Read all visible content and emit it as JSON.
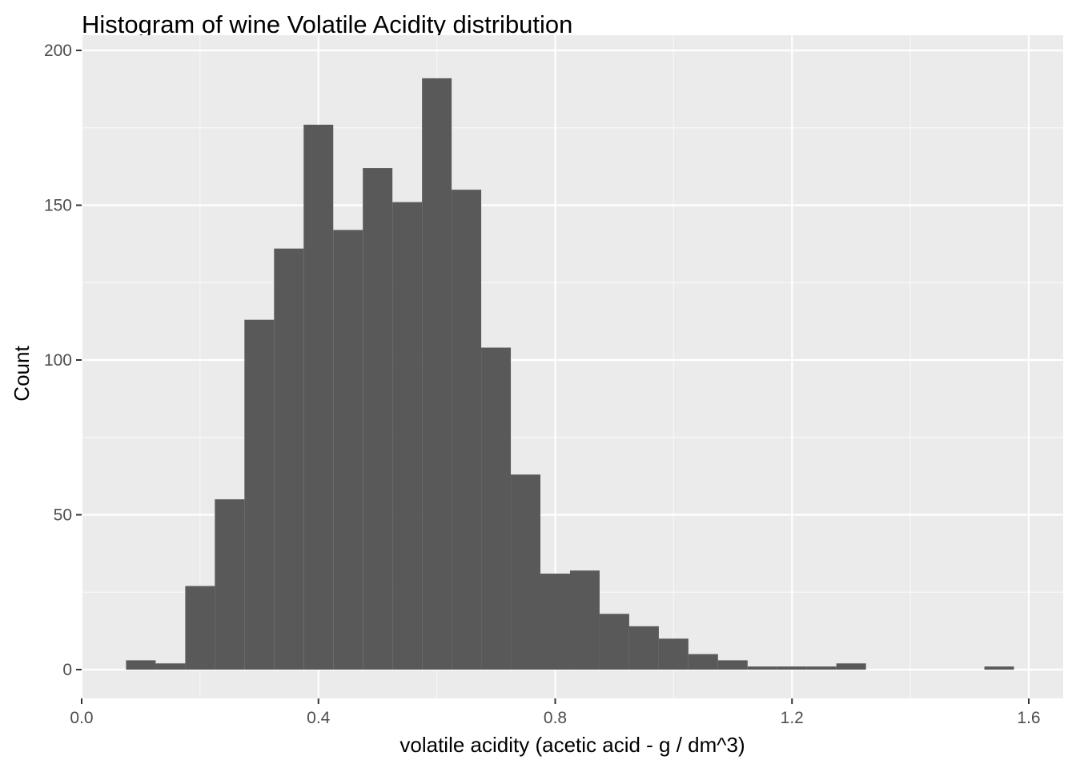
{
  "chart_data": {
    "type": "bar",
    "title": "Histogram of wine Volatile Acidity distribution",
    "xlabel": "volatile acidity (acetic acid - g / dm^3)",
    "ylabel": "Count",
    "xlim": [
      0.0,
      1.6
    ],
    "ylim": [
      0,
      200
    ],
    "bin_width": 0.05,
    "x_ticks": [
      0.0,
      0.4,
      0.8,
      1.2,
      1.6
    ],
    "x_tick_labels": [
      "0.0",
      "0.4",
      "0.8",
      "1.2",
      "1.6"
    ],
    "y_ticks": [
      0,
      50,
      100,
      150,
      200
    ],
    "y_tick_labels": [
      "0",
      "50",
      "100",
      "150",
      "200"
    ],
    "grid": true,
    "legend": "none",
    "bins": [
      {
        "x_start": 0.075,
        "x_end": 0.125,
        "count": 3
      },
      {
        "x_start": 0.125,
        "x_end": 0.175,
        "count": 2
      },
      {
        "x_start": 0.175,
        "x_end": 0.225,
        "count": 27
      },
      {
        "x_start": 0.225,
        "x_end": 0.275,
        "count": 55
      },
      {
        "x_start": 0.275,
        "x_end": 0.325,
        "count": 113
      },
      {
        "x_start": 0.325,
        "x_end": 0.375,
        "count": 136
      },
      {
        "x_start": 0.375,
        "x_end": 0.425,
        "count": 176
      },
      {
        "x_start": 0.425,
        "x_end": 0.475,
        "count": 142
      },
      {
        "x_start": 0.475,
        "x_end": 0.525,
        "count": 162
      },
      {
        "x_start": 0.525,
        "x_end": 0.575,
        "count": 151
      },
      {
        "x_start": 0.575,
        "x_end": 0.625,
        "count": 191
      },
      {
        "x_start": 0.625,
        "x_end": 0.675,
        "count": 155
      },
      {
        "x_start": 0.675,
        "x_end": 0.725,
        "count": 104
      },
      {
        "x_start": 0.725,
        "x_end": 0.775,
        "count": 63
      },
      {
        "x_start": 0.775,
        "x_end": 0.825,
        "count": 31
      },
      {
        "x_start": 0.825,
        "x_end": 0.875,
        "count": 32
      },
      {
        "x_start": 0.875,
        "x_end": 0.925,
        "count": 18
      },
      {
        "x_start": 0.925,
        "x_end": 0.975,
        "count": 14
      },
      {
        "x_start": 0.975,
        "x_end": 1.025,
        "count": 10
      },
      {
        "x_start": 1.025,
        "x_end": 1.075,
        "count": 5
      },
      {
        "x_start": 1.075,
        "x_end": 1.125,
        "count": 3
      },
      {
        "x_start": 1.125,
        "x_end": 1.175,
        "count": 1
      },
      {
        "x_start": 1.175,
        "x_end": 1.225,
        "count": 1
      },
      {
        "x_start": 1.225,
        "x_end": 1.275,
        "count": 1
      },
      {
        "x_start": 1.275,
        "x_end": 1.325,
        "count": 2
      },
      {
        "x_start": 1.325,
        "x_end": 1.375,
        "count": 0
      },
      {
        "x_start": 1.375,
        "x_end": 1.425,
        "count": 0
      },
      {
        "x_start": 1.425,
        "x_end": 1.475,
        "count": 0
      },
      {
        "x_start": 1.475,
        "x_end": 1.525,
        "count": 0
      },
      {
        "x_start": 1.525,
        "x_end": 1.575,
        "count": 1
      }
    ],
    "colors": {
      "bar_fill": "#595959",
      "panel_background": "#ebebeb",
      "grid_major": "#ffffff",
      "grid_minor": "#f7f7f7",
      "tick_text": "#4d4d4d",
      "tick_mark": "#333333",
      "title_text": "#000000"
    }
  }
}
